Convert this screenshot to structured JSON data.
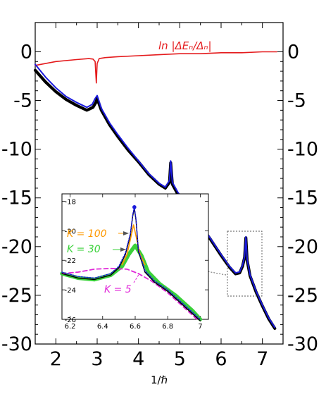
{
  "chart_data": {
    "type": "line",
    "xlabel": "1/ℏ",
    "xlim": [
      1.5,
      7.5
    ],
    "ylim": [
      -30,
      3
    ],
    "x_ticks": [
      "2",
      "3",
      "4",
      "5",
      "6",
      "7"
    ],
    "y_ticks": [
      "0",
      "-5",
      "-10",
      "-15",
      "-20",
      "-25",
      "-30"
    ],
    "annotation": "ln |ΔEₙ/Δₙ|",
    "colors": {
      "red": "#e41a1c",
      "black": "#000000",
      "blue": "#1a1adc",
      "green": "#3ad13a",
      "orange": "#ff9900",
      "magenta": "#e026d8"
    },
    "series": [
      {
        "color": "red",
        "x": [
          1.5,
          2.0,
          2.5,
          2.8,
          2.9,
          2.95,
          2.98,
          3.0,
          3.05,
          3.2,
          3.5,
          4.0,
          4.5,
          5.0,
          5.5,
          6.0,
          6.5,
          7.0,
          7.35
        ],
        "y": [
          -1.4,
          -1.0,
          -0.8,
          -0.7,
          -0.75,
          -1.0,
          -3.2,
          -1.2,
          -0.7,
          -0.6,
          -0.5,
          -0.4,
          -0.3,
          -0.2,
          -0.2,
          -0.1,
          -0.1,
          0.0,
          0.0
        ]
      },
      {
        "color": "black",
        "x": [
          1.5,
          1.75,
          2.0,
          2.25,
          2.5,
          2.75,
          2.9,
          2.97,
          3.0,
          3.1,
          3.3,
          3.5,
          3.75,
          4.0,
          4.25,
          4.5,
          4.65,
          4.75,
          4.78,
          4.82,
          4.95,
          5.2,
          5.5,
          5.75,
          6.0,
          6.2,
          6.35,
          6.45,
          6.52,
          6.57,
          6.6,
          6.63,
          6.7,
          6.85,
          7.0,
          7.15,
          7.3
        ],
        "y": [
          -1.9,
          -3.1,
          -4.1,
          -4.9,
          -5.5,
          -6.0,
          -5.7,
          -5.2,
          -4.8,
          -6.0,
          -7.5,
          -8.7,
          -10.1,
          -11.3,
          -12.6,
          -13.6,
          -14.0,
          -13.4,
          -11.4,
          -13.6,
          -14.6,
          -16.0,
          -17.8,
          -19.3,
          -20.9,
          -22.1,
          -22.8,
          -22.7,
          -22.0,
          -21.1,
          -19.1,
          -21.4,
          -23.0,
          -24.7,
          -26.1,
          -27.4,
          -28.4
        ]
      },
      {
        "color": "blue",
        "x": [
          1.5,
          1.75,
          2.0,
          2.25,
          2.5,
          2.75,
          2.88,
          2.95,
          3.0,
          3.1,
          3.3,
          3.5,
          3.75,
          4.0,
          4.25,
          4.5,
          4.65,
          4.75,
          4.78,
          4.82,
          4.95,
          5.2,
          5.5,
          5.75,
          6.0,
          6.2,
          6.35,
          6.45,
          6.52,
          6.57,
          6.6,
          6.63,
          6.7,
          6.85,
          7.0,
          7.15,
          7.3
        ],
        "y": [
          -1.3,
          -2.6,
          -3.7,
          -4.6,
          -5.2,
          -5.7,
          -5.4,
          -4.8,
          -4.5,
          -5.8,
          -7.3,
          -8.5,
          -9.9,
          -11.2,
          -12.5,
          -13.5,
          -13.9,
          -13.2,
          -11.2,
          -13.4,
          -14.4,
          -15.9,
          -17.6,
          -19.2,
          -20.8,
          -22.0,
          -22.7,
          -22.6,
          -21.9,
          -21.0,
          -19.0,
          -21.3,
          -22.9,
          -24.6,
          -26.0,
          -27.3,
          -28.3
        ]
      }
    ],
    "inset": {
      "xlim": [
        6.15,
        7.05
      ],
      "ylim": [
        -26,
        -17.5
      ],
      "x_ticks": [
        "6.2",
        "6.4",
        "6.6",
        "6.8",
        "7"
      ],
      "y_ticks": [
        "-18",
        "-20",
        "-22",
        "-24",
        "-26"
      ],
      "labels": [
        {
          "text": "K = 100",
          "color": "orange"
        },
        {
          "text": "K = 30",
          "color": "green"
        },
        {
          "text": "K = 5",
          "color": "magenta"
        }
      ],
      "series": [
        {
          "color": "green",
          "x": [
            6.15,
            6.25,
            6.35,
            6.45,
            6.52,
            6.56,
            6.6,
            6.64,
            6.68,
            6.75,
            6.85,
            6.95,
            7.0
          ],
          "y": [
            -22.9,
            -23.2,
            -23.3,
            -23.0,
            -22.4,
            -21.6,
            -21.0,
            -21.7,
            -22.8,
            -23.6,
            -24.4,
            -25.4,
            -26.0
          ]
        },
        {
          "color": "magenta",
          "x": [
            6.15,
            6.25,
            6.35,
            6.45,
            6.55,
            6.62,
            6.7,
            6.8,
            6.9,
            6.95,
            6.98
          ],
          "y": [
            -22.9,
            -22.8,
            -22.6,
            -22.55,
            -22.6,
            -22.9,
            -23.4,
            -24.2,
            -25.2,
            -25.7,
            -26.0
          ]
        },
        {
          "color": "orange",
          "x": [
            6.52,
            6.55,
            6.57,
            6.59,
            6.61,
            6.63,
            6.66
          ],
          "y": [
            -22.3,
            -21.6,
            -20.6,
            -19.6,
            -20.6,
            -21.6,
            -22.3
          ]
        },
        {
          "color": "black",
          "x": [
            6.15,
            6.25,
            6.35,
            6.45,
            6.5,
            6.54,
            6.57,
            6.585,
            6.595,
            6.605,
            6.62,
            6.66,
            6.72,
            6.8,
            6.9,
            7.0
          ],
          "y": [
            -22.9,
            -23.2,
            -23.3,
            -23.0,
            -22.5,
            -21.6,
            -20.3,
            -19.0,
            -18.5,
            -19.3,
            -21.4,
            -22.8,
            -23.5,
            -24.1,
            -25.1,
            -26.1
          ]
        },
        {
          "color": "blue",
          "x": [
            6.15,
            6.25,
            6.35,
            6.45,
            6.5,
            6.54,
            6.57,
            6.585,
            6.595,
            6.605,
            6.62,
            6.66,
            6.72,
            6.8,
            6.9,
            7.0
          ],
          "y": [
            -22.8,
            -23.1,
            -23.2,
            -22.9,
            -22.4,
            -21.5,
            -20.2,
            -18.9,
            -18.4,
            -19.2,
            -21.3,
            -22.7,
            -23.4,
            -24.0,
            -25.0,
            -26.0
          ]
        }
      ]
    }
  }
}
